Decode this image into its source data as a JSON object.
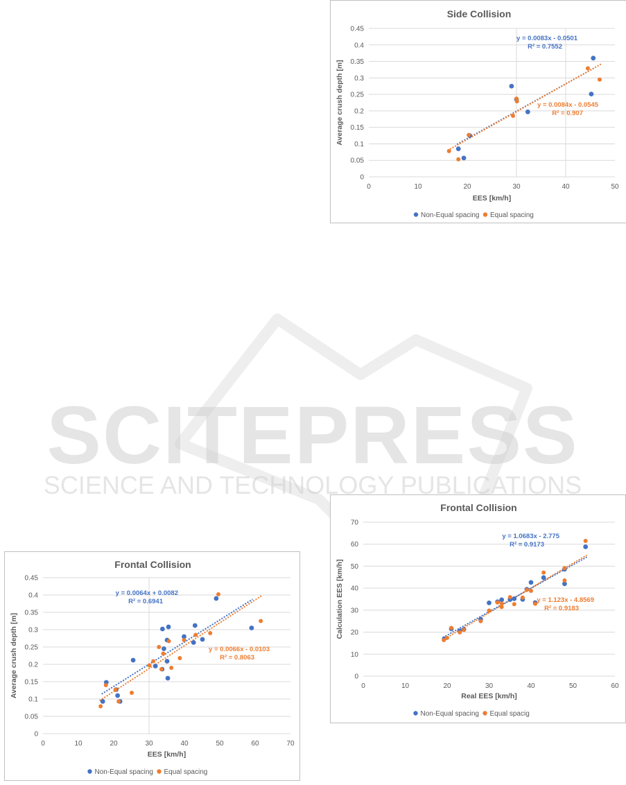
{
  "watermark": {
    "title": "SCITEPRESS",
    "subtitle": "SCIENCE AND TECHNOLOGY PUBLICATIONS"
  },
  "colors": {
    "blue": "#4472c4",
    "orange": "#ed7d31",
    "grid": "#d9d9d9",
    "axis_text": "#595959"
  },
  "chart_data": [
    {
      "id": "side",
      "type": "scatter",
      "title": "Side Collision",
      "xlabel": "EES [km/h]",
      "ylabel": "Average crush depth [m]",
      "xlim": [
        0,
        50
      ],
      "ylim": [
        0,
        0.45
      ],
      "xticks": [
        0,
        10,
        20,
        30,
        40,
        50
      ],
      "yticks": [
        0,
        0.05,
        0.1,
        0.15,
        0.2,
        0.25,
        0.3,
        0.35,
        0.4,
        0.45
      ],
      "grid": true,
      "legend_position": "bottom",
      "series": [
        {
          "name": "Non-Equal spacing",
          "color": "#4472c4",
          "trendline": {
            "slope": 0.0083,
            "intercept": -0.0501,
            "label": "y = 0.0083x - 0.0501",
            "r2_label": "R² = 0.7552"
          },
          "points": [
            [
              18.2,
              0.085
            ],
            [
              19.3,
              0.057
            ],
            [
              20.5,
              0.125
            ],
            [
              29.0,
              0.275
            ],
            [
              30.0,
              0.235
            ],
            [
              32.3,
              0.197
            ],
            [
              45.2,
              0.251
            ],
            [
              45.6,
              0.36
            ]
          ]
        },
        {
          "name": "Equal spacing",
          "color": "#ed7d31",
          "trendline": {
            "slope": 0.0084,
            "intercept": -0.0545,
            "label": "y = 0.0084x - 0.0545",
            "r2_label": "R² = 0.907"
          },
          "points": [
            [
              16.3,
              0.078
            ],
            [
              18.2,
              0.053
            ],
            [
              20.3,
              0.127
            ],
            [
              29.3,
              0.185
            ],
            [
              30.0,
              0.237
            ],
            [
              30.1,
              0.229
            ],
            [
              44.5,
              0.329
            ],
            [
              46.9,
              0.295
            ]
          ]
        }
      ]
    },
    {
      "id": "frontal_crush",
      "type": "scatter",
      "title": "Frontal Collision",
      "xlabel": "EES [km/h]",
      "ylabel": "Average crush depth [m]",
      "xlim": [
        0,
        70
      ],
      "ylim": [
        0,
        0.45
      ],
      "xticks": [
        0,
        10,
        20,
        30,
        40,
        50,
        60,
        70
      ],
      "yticks": [
        0,
        0.05,
        0.1,
        0.15,
        0.2,
        0.25,
        0.3,
        0.35,
        0.4,
        0.45
      ],
      "grid": true,
      "legend_position": "bottom",
      "series": [
        {
          "name": "Non-Equal spacing",
          "color": "#4472c4",
          "trendline": {
            "slope": 0.0064,
            "intercept": 0.0082,
            "label": "y = 0.0064x + 0.0082",
            "r2_label": "R² = 0.6941"
          },
          "points": [
            [
              16.9,
              0.093
            ],
            [
              17.9,
              0.148
            ],
            [
              20.7,
              0.127
            ],
            [
              21.1,
              0.11
            ],
            [
              21.8,
              0.093
            ],
            [
              25.5,
              0.212
            ],
            [
              31.8,
              0.195
            ],
            [
              33.7,
              0.186
            ],
            [
              33.8,
              0.302
            ],
            [
              34.2,
              0.245
            ],
            [
              35.1,
              0.27
            ],
            [
              35.1,
              0.209
            ],
            [
              35.3,
              0.16
            ],
            [
              35.5,
              0.308
            ],
            [
              39.9,
              0.28
            ],
            [
              42.6,
              0.263
            ],
            [
              43.0,
              0.312
            ],
            [
              45.1,
              0.272
            ],
            [
              49.0,
              0.39
            ],
            [
              59.0,
              0.305
            ]
          ]
        },
        {
          "name": "Equal spacing",
          "color": "#ed7d31",
          "trendline": {
            "slope": 0.0066,
            "intercept": -0.0103,
            "label": "y = 0.0066x - 0.0103",
            "r2_label": "R² = 0.8063"
          },
          "points": [
            [
              16.3,
              0.079
            ],
            [
              17.8,
              0.14
            ],
            [
              20.5,
              0.127
            ],
            [
              21.4,
              0.093
            ],
            [
              25.1,
              0.118
            ],
            [
              30.1,
              0.197
            ],
            [
              31.2,
              0.209
            ],
            [
              32.8,
              0.25
            ],
            [
              33.5,
              0.186
            ],
            [
              34.0,
              0.231
            ],
            [
              35.6,
              0.267
            ],
            [
              36.3,
              0.19
            ],
            [
              38.7,
              0.218
            ],
            [
              39.9,
              0.27
            ],
            [
              43.2,
              0.285
            ],
            [
              47.3,
              0.29
            ],
            [
              49.6,
              0.402
            ],
            [
              61.6,
              0.325
            ]
          ]
        }
      ]
    },
    {
      "id": "frontal_ees",
      "type": "scatter",
      "title": "Frontal Collision",
      "xlabel": "Real EES [km/h]",
      "ylabel": "Calculation EES [km/h]",
      "xlim": [
        0,
        60
      ],
      "ylim": [
        0,
        70
      ],
      "xticks": [
        0,
        10,
        20,
        30,
        40,
        50,
        60
      ],
      "yticks": [
        0,
        10,
        20,
        30,
        40,
        50,
        60,
        70
      ],
      "grid": true,
      "legend_position": "bottom",
      "series": [
        {
          "name": "Non-Equal spacing",
          "color": "#4472c4",
          "trendline": {
            "slope": 1.0683,
            "intercept": -2.775,
            "label": "y = 1.0683x - 2.775",
            "r2_label": "R² = 0.9173"
          },
          "points": [
            [
              19.3,
              17.0
            ],
            [
              21.0,
              21.5
            ],
            [
              23.0,
              20.6
            ],
            [
              24.0,
              21.2
            ],
            [
              28.0,
              25.8
            ],
            [
              30.0,
              33.3
            ],
            [
              32.0,
              33.8
            ],
            [
              33.0,
              34.7
            ],
            [
              35.0,
              34.8
            ],
            [
              36.0,
              35.2
            ],
            [
              38.0,
              34.9
            ],
            [
              39.0,
              39.5
            ],
            [
              40.0,
              42.6
            ],
            [
              41.0,
              33.4
            ],
            [
              43.0,
              44.8
            ],
            [
              48.0,
              42.0
            ],
            [
              48.0,
              48.6
            ],
            [
              53.0,
              58.8
            ]
          ]
        },
        {
          "name": "Equal spacig",
          "color": "#ed7d31",
          "trendline": {
            "slope": 1.123,
            "intercept": -4.8569,
            "label": "y = 1.123x - 4.8569",
            "r2_label": "R² = 0.9183"
          },
          "points": [
            [
              19.2,
              16.4
            ],
            [
              20.0,
              17.4
            ],
            [
              21.0,
              21.9
            ],
            [
              23.0,
              19.9
            ],
            [
              24.0,
              21.0
            ],
            [
              28.0,
              25.0
            ],
            [
              30.0,
              29.8
            ],
            [
              32.0,
              33.5
            ],
            [
              33.0,
              31.4
            ],
            [
              33.0,
              33.0
            ],
            [
              35.0,
              35.9
            ],
            [
              36.0,
              32.7
            ],
            [
              38.0,
              35.7
            ],
            [
              39.0,
              39.2
            ],
            [
              40.0,
              38.8
            ],
            [
              41.0,
              32.9
            ],
            [
              43.0,
              47.1
            ],
            [
              48.0,
              43.5
            ],
            [
              48.0,
              49.1
            ],
            [
              53.0,
              61.5
            ]
          ]
        }
      ]
    }
  ]
}
